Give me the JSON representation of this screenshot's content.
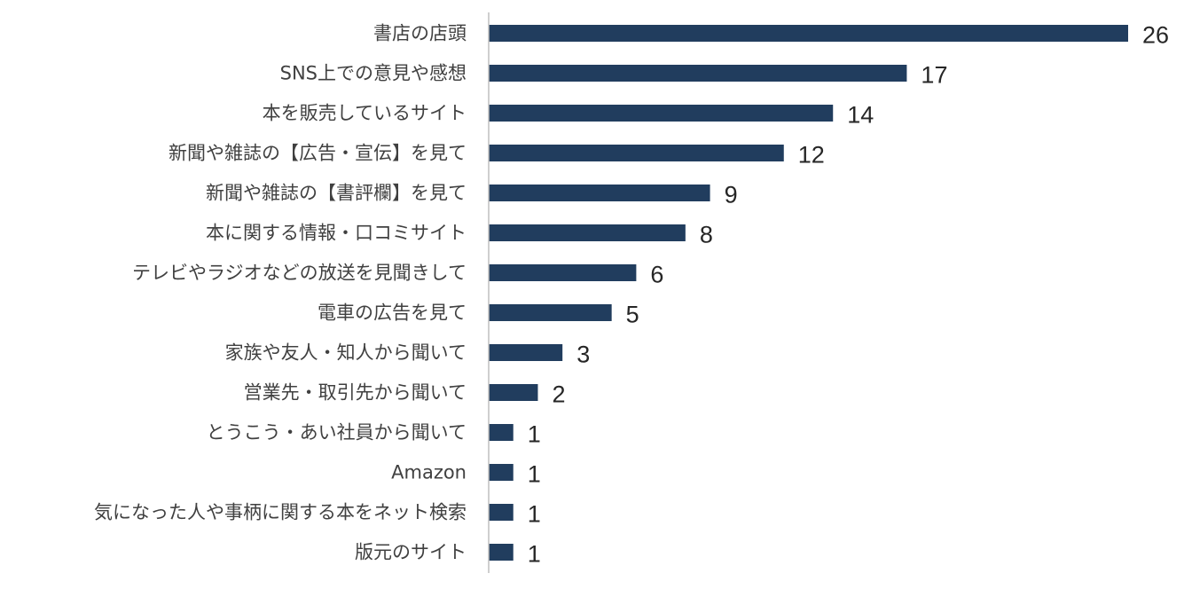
{
  "chart_data": {
    "type": "bar",
    "orientation": "horizontal",
    "title": "",
    "xlabel": "",
    "ylabel": "",
    "categories": [
      "書店の店頭",
      "SNS上での意見や感想",
      "本を販売しているサイト",
      "新聞や雑誌の【広告・宣伝】を見て",
      "新聞や雑誌の【書評欄】を見て",
      "本に関する情報・口コミサイト",
      "テレビやラジオなどの放送を見聞きして",
      "電車の広告を見て",
      "家族や友人・知人から聞いて",
      "営業先・取引先から聞いて",
      "とうこう・あい社員から聞いて",
      "Amazon",
      "気になった人や事柄に関する本をネット検索",
      "版元のサイト"
    ],
    "values": [
      26,
      17,
      14,
      12,
      9,
      8,
      6,
      5,
      3,
      2,
      1,
      1,
      1,
      1
    ],
    "xlim": [
      0,
      26
    ],
    "bar_color": "#213d5e",
    "axis_color": "#bfbfbf",
    "grid": false,
    "legend": "none",
    "data_labels": true
  }
}
